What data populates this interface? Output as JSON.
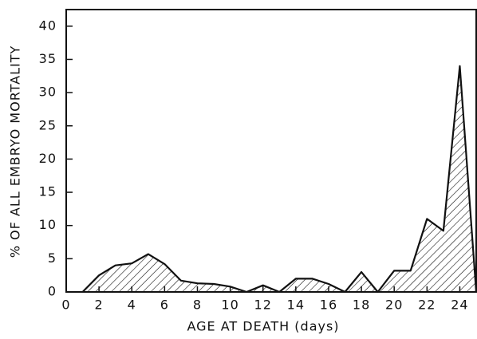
{
  "chart_data": {
    "type": "area",
    "xlabel": "AGE AT DEATH (days)",
    "ylabel": "% OF ALL EMBRYO MORTALITY",
    "x": [
      1,
      2,
      3,
      4,
      5,
      6,
      7,
      8,
      9,
      10,
      11,
      12,
      13,
      14,
      15,
      16,
      17,
      18,
      19,
      20,
      21,
      22,
      23,
      24,
      25
    ],
    "values": [
      0,
      2.5,
      4,
      4.3,
      5.7,
      4.2,
      1.7,
      1.3,
      1.2,
      0.8,
      0,
      1,
      0,
      2,
      2,
      1.2,
      0,
      3,
      0,
      3.2,
      3.2,
      11,
      9.2,
      34,
      0
    ],
    "color": "#111111",
    "xlim": [
      0,
      25
    ],
    "xticks": [
      0,
      2,
      4,
      6,
      8,
      10,
      12,
      14,
      16,
      18,
      20,
      22,
      24
    ],
    "ylim": [
      0,
      42.5
    ],
    "yticks": [
      0,
      5,
      10,
      15,
      20,
      25,
      30,
      35,
      40
    ]
  }
}
